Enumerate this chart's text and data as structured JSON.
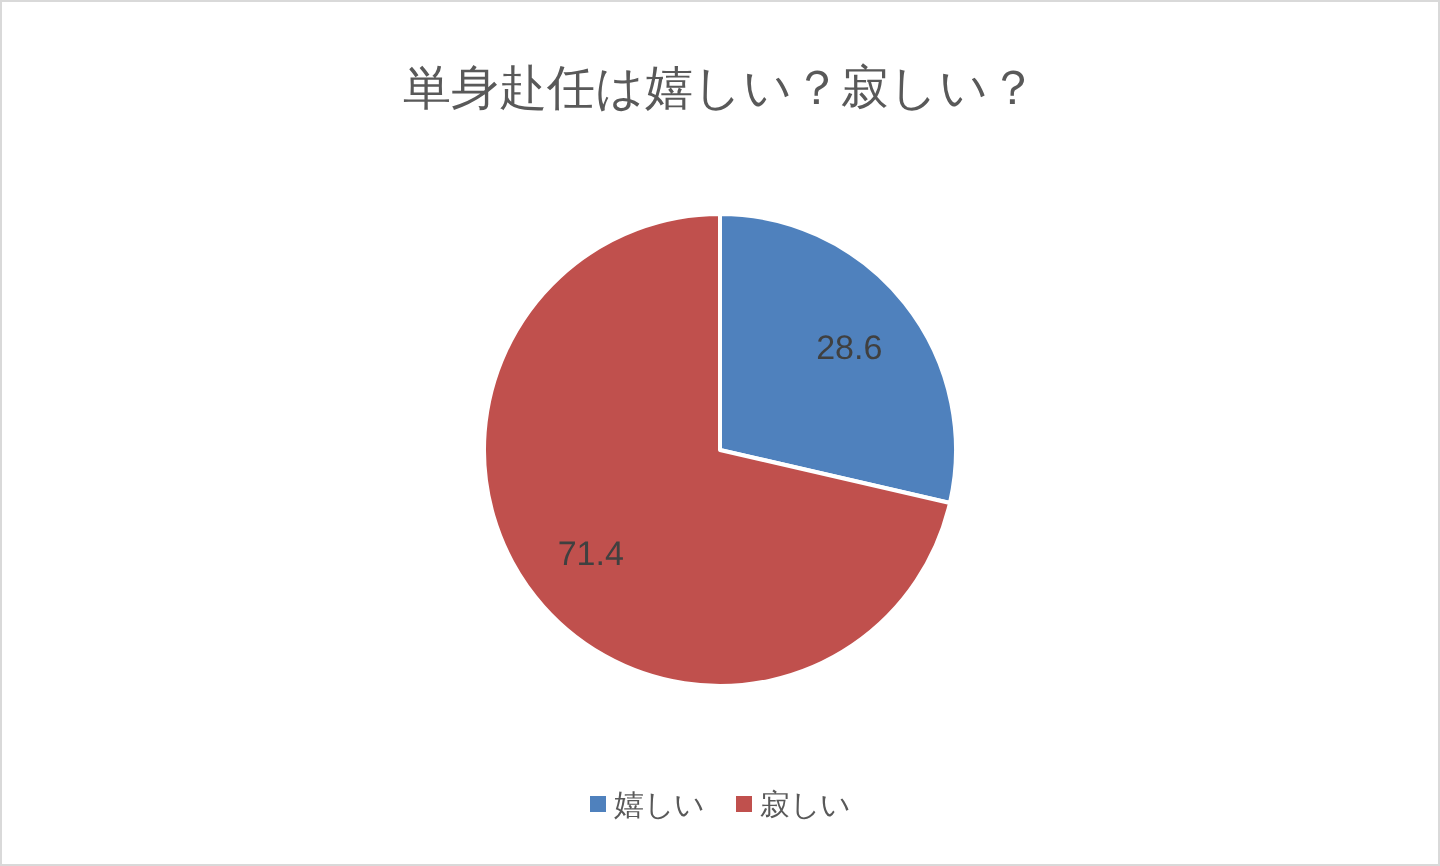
{
  "chart_data": {
    "type": "pie",
    "title": "単身赴任は嬉しい？寂しい？",
    "categories": [
      "嬉しい",
      "寂しい"
    ],
    "values": [
      28.6,
      71.4
    ],
    "colors": [
      "#4f81bd",
      "#c0504d"
    ],
    "data_labels": true,
    "legend": "bottom"
  }
}
